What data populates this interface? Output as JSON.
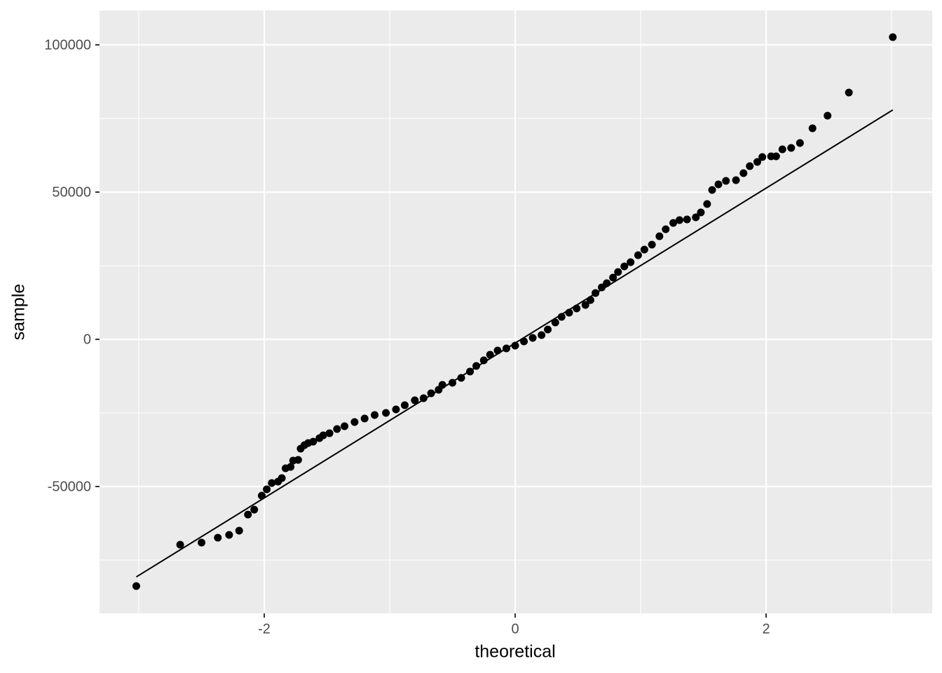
{
  "chart_data": {
    "type": "qq",
    "x_label": "theoretical",
    "y_label": "sample",
    "xlim": [
      -3.313,
      3.324
    ],
    "ylim": [
      -93095,
      111667
    ],
    "xticks": [
      -2,
      0,
      2
    ],
    "yticks": [
      -50000,
      0,
      50000,
      100000
    ],
    "grid": true,
    "points": {
      "color": "#000000",
      "x": [
        -3.02,
        -2.67,
        -2.5,
        -2.37,
        -2.28,
        -2.2,
        -2.13,
        -2.08,
        -2.02,
        -1.98,
        -1.94,
        -1.89,
        -1.86,
        -1.83,
        -1.79,
        -1.77,
        -1.73,
        -1.71,
        -1.68,
        -1.65,
        -1.61,
        -1.56,
        -1.53,
        -1.48,
        -1.42,
        -1.36,
        -1.28,
        -1.2,
        -1.12,
        -1.03,
        -0.95,
        -0.88,
        -0.8,
        -0.73,
        -0.67,
        -0.61,
        -0.58,
        -0.5,
        -0.43,
        -0.36,
        -0.31,
        -0.25,
        -0.2,
        -0.14,
        -0.07,
        0,
        0.07,
        0.14,
        0.21,
        0.26,
        0.32,
        0.37,
        0.43,
        0.49,
        0.56,
        0.6,
        0.64,
        0.69,
        0.73,
        0.78,
        0.82,
        0.87,
        0.92,
        0.98,
        1.03,
        1.09,
        1.15,
        1.2,
        1.26,
        1.31,
        1.37,
        1.44,
        1.48,
        1.53,
        1.57,
        1.62,
        1.68,
        1.76,
        1.82,
        1.87,
        1.93,
        1.97,
        2.04,
        2.08,
        2.13,
        2.2,
        2.27,
        2.37,
        2.49,
        2.66,
        3.01
      ],
      "y": [
        -83810,
        -69760,
        -69050,
        -67380,
        -66430,
        -65000,
        -59520,
        -57860,
        -53100,
        -50950,
        -48810,
        -48330,
        -47140,
        -43810,
        -43330,
        -41190,
        -40950,
        -37140,
        -35950,
        -35240,
        -34760,
        -33570,
        -32620,
        -31900,
        -30480,
        -29520,
        -28100,
        -26900,
        -25710,
        -25000,
        -23810,
        -22380,
        -20710,
        -20000,
        -18330,
        -17140,
        -15480,
        -14760,
        -13100,
        -10950,
        -9050,
        -7140,
        -5240,
        -3810,
        -3100,
        -2140,
        -710,
        480,
        1430,
        3330,
        5710,
        7620,
        9050,
        10480,
        11670,
        13330,
        15710,
        17620,
        19050,
        20950,
        22860,
        24760,
        26190,
        28570,
        30480,
        32140,
        35000,
        37380,
        39520,
        40480,
        40710,
        41430,
        43100,
        45950,
        50710,
        52620,
        53810,
        54050,
        56430,
        58810,
        60240,
        61900,
        62140,
        62140,
        64520,
        65000,
        66670,
        71670,
        75950,
        83810,
        102620
      ]
    },
    "line": {
      "color": "#000000",
      "x": [
        -3.02,
        3.01
      ],
      "y": [
        -80700,
        77900
      ]
    }
  }
}
